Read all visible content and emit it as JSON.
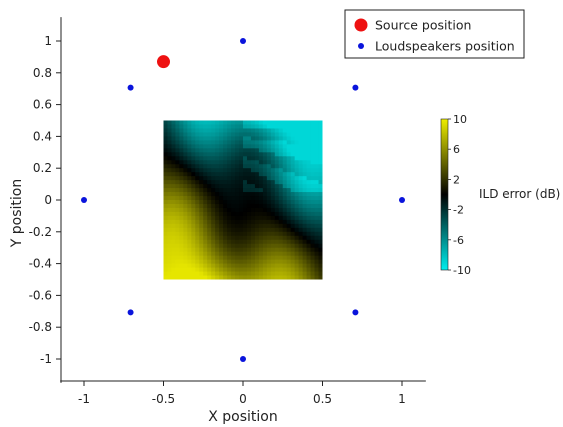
{
  "chart_data": {
    "type": "scatter",
    "title": "",
    "xlabel": "X position",
    "ylabel": "Y position",
    "xlim": [
      -1.15,
      1.15
    ],
    "ylim": [
      -1.15,
      1.15
    ],
    "x_ticks": [
      -1,
      -0.5,
      0,
      0.5,
      1
    ],
    "x_tick_labels": [
      "-1",
      "-0.5",
      "0",
      "0.5",
      "1"
    ],
    "y_ticks": [
      1,
      0.8,
      0.6,
      0.4,
      0.2,
      0,
      -0.2,
      -0.4,
      -0.6,
      -0.8,
      -1
    ],
    "y_tick_labels": [
      "1",
      "0.8",
      "0.6",
      "0.4",
      "0.2",
      "0",
      "-0.2",
      "-0.4",
      "-0.6",
      "-0.8",
      "-1"
    ],
    "grid": false,
    "legend_position": "top-right",
    "series": [
      {
        "name": "Source position",
        "color": "#ee1111",
        "marker": "large-circle",
        "points": [
          {
            "x": -0.5,
            "y": 0.87
          }
        ]
      },
      {
        "name": "Loudspeakers position",
        "color": "#0a14dc",
        "marker": "small-circle",
        "points": [
          {
            "x": 0,
            "y": 1
          },
          {
            "x": 0.707,
            "y": 0.707
          },
          {
            "x": 1,
            "y": 0
          },
          {
            "x": 0.707,
            "y": -0.707
          },
          {
            "x": 0,
            "y": -1
          },
          {
            "x": -0.707,
            "y": -0.707
          },
          {
            "x": -1,
            "y": 0
          },
          {
            "x": -0.707,
            "y": 0.707
          }
        ]
      }
    ],
    "heatmap": {
      "x_range": [
        -0.5,
        0.5
      ],
      "y_range": [
        -0.5,
        0.5
      ],
      "value_label": "ILD error (dB)",
      "colorscale": [
        "#00eeee",
        "#000000",
        "#eeee00"
      ],
      "clim": [
        -10,
        10
      ]
    },
    "colorbar": {
      "title": "ILD error (dB)",
      "ticks": [
        10,
        6,
        2,
        -2,
        -6,
        -10
      ],
      "tick_labels": [
        "10",
        "6",
        "2",
        "-2",
        "-6",
        "-10"
      ]
    }
  }
}
